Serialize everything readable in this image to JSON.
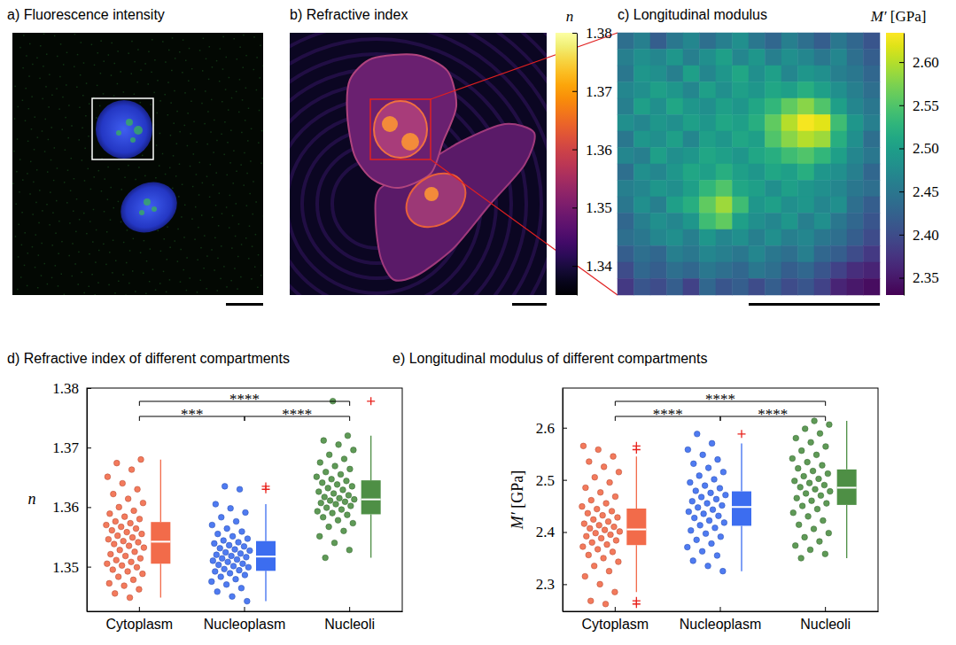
{
  "chart_data": [
    {
      "type": "image",
      "title": "a) Fluorescence intensity"
    },
    {
      "type": "image",
      "title": "b) Refractive index",
      "colorbar": {
        "label": "n",
        "range": [
          1.335,
          1.38
        ],
        "ticks": [
          1.34,
          1.35,
          1.36,
          1.37,
          1.38
        ]
      }
    },
    {
      "type": "heatmap",
      "title": "c) Longitudinal modulus",
      "values": [
        [
          2.44,
          2.46,
          2.42,
          2.45,
          2.47,
          2.44,
          2.46,
          2.48,
          2.45,
          2.43,
          2.46,
          2.44,
          2.42,
          2.45,
          2.43,
          2.41
        ],
        [
          2.46,
          2.48,
          2.47,
          2.49,
          2.46,
          2.48,
          2.5,
          2.47,
          2.49,
          2.46,
          2.48,
          2.47,
          2.45,
          2.47,
          2.44,
          2.42
        ],
        [
          2.45,
          2.49,
          2.48,
          2.46,
          2.5,
          2.47,
          2.49,
          2.51,
          2.48,
          2.5,
          2.47,
          2.49,
          2.48,
          2.46,
          2.45,
          2.43
        ],
        [
          2.47,
          2.48,
          2.5,
          2.49,
          2.47,
          2.5,
          2.48,
          2.5,
          2.49,
          2.51,
          2.5,
          2.52,
          2.5,
          2.48,
          2.46,
          2.44
        ],
        [
          2.46,
          2.5,
          2.48,
          2.51,
          2.49,
          2.48,
          2.5,
          2.49,
          2.51,
          2.53,
          2.56,
          2.58,
          2.55,
          2.5,
          2.47,
          2.45
        ],
        [
          2.48,
          2.47,
          2.49,
          2.48,
          2.5,
          2.49,
          2.51,
          2.5,
          2.52,
          2.56,
          2.6,
          2.63,
          2.62,
          2.54,
          2.49,
          2.46
        ],
        [
          2.45,
          2.49,
          2.48,
          2.5,
          2.47,
          2.5,
          2.49,
          2.51,
          2.5,
          2.55,
          2.58,
          2.6,
          2.59,
          2.52,
          2.48,
          2.44
        ],
        [
          2.47,
          2.46,
          2.5,
          2.48,
          2.49,
          2.51,
          2.5,
          2.49,
          2.51,
          2.52,
          2.54,
          2.55,
          2.53,
          2.5,
          2.47,
          2.45
        ],
        [
          2.44,
          2.48,
          2.47,
          2.49,
          2.51,
          2.5,
          2.52,
          2.5,
          2.49,
          2.51,
          2.5,
          2.52,
          2.49,
          2.48,
          2.46,
          2.43
        ],
        [
          2.46,
          2.47,
          2.49,
          2.48,
          2.5,
          2.53,
          2.55,
          2.51,
          2.5,
          2.48,
          2.5,
          2.49,
          2.48,
          2.47,
          2.45,
          2.44
        ],
        [
          2.45,
          2.48,
          2.46,
          2.5,
          2.52,
          2.56,
          2.59,
          2.54,
          2.49,
          2.5,
          2.48,
          2.49,
          2.47,
          2.48,
          2.44,
          2.42
        ],
        [
          2.43,
          2.46,
          2.48,
          2.47,
          2.49,
          2.54,
          2.56,
          2.5,
          2.48,
          2.47,
          2.49,
          2.46,
          2.48,
          2.45,
          2.43,
          2.41
        ],
        [
          2.44,
          2.45,
          2.47,
          2.48,
          2.46,
          2.49,
          2.47,
          2.48,
          2.46,
          2.48,
          2.46,
          2.47,
          2.45,
          2.44,
          2.42,
          2.4
        ],
        [
          2.42,
          2.44,
          2.43,
          2.46,
          2.45,
          2.47,
          2.46,
          2.45,
          2.47,
          2.45,
          2.44,
          2.46,
          2.43,
          2.42,
          2.4,
          2.38
        ],
        [
          2.4,
          2.43,
          2.42,
          2.44,
          2.43,
          2.45,
          2.44,
          2.43,
          2.45,
          2.44,
          2.42,
          2.43,
          2.41,
          2.39,
          2.37,
          2.36
        ],
        [
          2.38,
          2.41,
          2.4,
          2.42,
          2.39,
          2.43,
          2.41,
          2.42,
          2.4,
          2.42,
          2.4,
          2.41,
          2.39,
          2.36,
          2.35,
          2.34
        ]
      ],
      "colorbar": {
        "label": "M′ [GPa]",
        "range": [
          2.33,
          2.634
        ],
        "ticks": [
          2.35,
          {
            "value": 2.4,
            "label": "2.40"
          },
          2.45,
          {
            "value": 2.5,
            "label": "2.50"
          },
          2.55,
          {
            "value": 2.6,
            "label": "2.60"
          }
        ]
      }
    },
    {
      "type": "box",
      "title": "d) Refractive index of different compartments",
      "categories": [
        "Cytoplasm",
        "Nucleoplasm",
        "Nucleoli"
      ],
      "colors": [
        "#f26b4a",
        "#3c6df0",
        "#4e8f45"
      ],
      "ylabel": "n",
      "ylim": [
        1.3425,
        1.38
      ],
      "yticks": [
        1.35,
        1.36,
        1.37,
        1.38
      ],
      "points": [
        [
          1.3448,
          1.3455,
          1.3462,
          1.3468,
          1.3472,
          1.3478,
          1.3483,
          1.3488,
          1.3492,
          1.3495,
          1.3499,
          1.3502,
          1.3505,
          1.3508,
          1.3511,
          1.3514,
          1.3518,
          1.3521,
          1.3525,
          1.3528,
          1.3532,
          1.3535,
          1.3538,
          1.3541,
          1.3543,
          1.3546,
          1.3549,
          1.3552,
          1.3555,
          1.3558,
          1.3561,
          1.3564,
          1.3567,
          1.357,
          1.3573,
          1.3576,
          1.358,
          1.3584,
          1.3589,
          1.3594,
          1.36,
          1.3607,
          1.3614,
          1.3622,
          1.363,
          1.364,
          1.3651,
          1.3663,
          1.3674,
          1.368
        ],
        [
          1.3442,
          1.345,
          1.3458,
          1.3464,
          1.347,
          1.3475,
          1.3479,
          1.3483,
          1.3486,
          1.3489,
          1.3492,
          1.3494,
          1.3496,
          1.3499,
          1.3501,
          1.3503,
          1.3505,
          1.3508,
          1.351,
          1.3512,
          1.3514,
          1.3516,
          1.3518,
          1.352,
          1.3522,
          1.3524,
          1.3527,
          1.3529,
          1.3531,
          1.3534,
          1.3536,
          1.3539,
          1.3541,
          1.3544,
          1.3547,
          1.3551,
          1.3555,
          1.3559,
          1.3564,
          1.357,
          1.3576,
          1.3583,
          1.3591,
          1.3598,
          1.3605,
          1.363,
          1.3635
        ],
        [
          1.3515,
          1.3528,
          1.354,
          1.3551,
          1.356,
          1.3567,
          1.3573,
          1.3578,
          1.3583,
          1.3587,
          1.359,
          1.3593,
          1.3596,
          1.3599,
          1.3602,
          1.3605,
          1.3607,
          1.3609,
          1.3611,
          1.3613,
          1.3615,
          1.3617,
          1.362,
          1.3623,
          1.3626,
          1.3629,
          1.3632,
          1.3635,
          1.3638,
          1.3641,
          1.3644,
          1.3647,
          1.3651,
          1.3655,
          1.3659,
          1.3664,
          1.3669,
          1.3675,
          1.3681,
          1.3688,
          1.3696,
          1.3705,
          1.3712,
          1.372,
          1.3778
        ]
      ],
      "boxes": [
        {
          "median": 1.3542,
          "q1": 1.3505,
          "q3": 1.3575,
          "whisker_low": 1.3448,
          "whisker_high": 1.368,
          "outliers": []
        },
        {
          "median": 1.3517,
          "q1": 1.3493,
          "q3": 1.3543,
          "whisker_low": 1.3442,
          "whisker_high": 1.3605,
          "outliers": [
            1.363,
            1.3635
          ]
        },
        {
          "median": 1.3613,
          "q1": 1.3588,
          "q3": 1.3645,
          "whisker_low": 1.3515,
          "whisker_high": 1.372,
          "outliers": [
            1.3778
          ]
        }
      ],
      "significance": [
        {
          "pair": [
            0,
            1
          ],
          "label": "***"
        },
        {
          "pair": [
            0,
            2
          ],
          "label": "****"
        },
        {
          "pair": [
            1,
            2
          ],
          "label": "****"
        }
      ]
    },
    {
      "type": "box",
      "title": "e) Longitudinal modulus of different compartments",
      "categories": [
        "Cytoplasm",
        "Nucleoplasm",
        "Nucleoli"
      ],
      "colors": [
        "#f26b4a",
        "#3c6df0",
        "#4e8f45"
      ],
      "ylabel": "M′ [GPa]",
      "ylim": [
        2.248,
        2.676
      ],
      "yticks": [
        2.3,
        2.4,
        2.5,
        2.6
      ],
      "points": [
        [
          2.262,
          2.268,
          2.285,
          2.3,
          2.315,
          2.325,
          2.335,
          2.343,
          2.35,
          2.356,
          2.362,
          2.367,
          2.372,
          2.376,
          2.38,
          2.384,
          2.388,
          2.392,
          2.395,
          2.398,
          2.401,
          2.404,
          2.407,
          2.41,
          2.413,
          2.416,
          2.42,
          2.424,
          2.428,
          2.432,
          2.436,
          2.44,
          2.444,
          2.449,
          2.455,
          2.461,
          2.468,
          2.476,
          2.485,
          2.495,
          2.505,
          2.515,
          2.525,
          2.535,
          2.545,
          2.558,
          2.565
        ],
        [
          2.325,
          2.335,
          2.345,
          2.355,
          2.363,
          2.371,
          2.378,
          2.385,
          2.391,
          2.397,
          2.403,
          2.408,
          2.413,
          2.418,
          2.422,
          2.427,
          2.431,
          2.435,
          2.439,
          2.443,
          2.447,
          2.451,
          2.455,
          2.459,
          2.463,
          2.467,
          2.471,
          2.475,
          2.479,
          2.484,
          2.489,
          2.495,
          2.501,
          2.508,
          2.515,
          2.523,
          2.531,
          2.539,
          2.548,
          2.558,
          2.57,
          2.588
        ],
        [
          2.35,
          2.358,
          2.366,
          2.374,
          2.382,
          2.39,
          2.398,
          2.406,
          2.414,
          2.422,
          2.43,
          2.437,
          2.444,
          2.45,
          2.455,
          2.46,
          2.465,
          2.47,
          2.474,
          2.478,
          2.482,
          2.486,
          2.49,
          2.494,
          2.498,
          2.502,
          2.507,
          2.512,
          2.517,
          2.522,
          2.528,
          2.534,
          2.541,
          2.548,
          2.556,
          2.564,
          2.572,
          2.58,
          2.589,
          2.598,
          2.606,
          2.613
        ]
      ],
      "boxes": [
        {
          "median": 2.405,
          "q1": 2.375,
          "q3": 2.445,
          "whisker_low": 2.285,
          "whisker_high": 2.545,
          "outliers": [
            2.262,
            2.268,
            2.558,
            2.565
          ]
        },
        {
          "median": 2.448,
          "q1": 2.412,
          "q3": 2.478,
          "whisker_low": 2.325,
          "whisker_high": 2.57,
          "outliers": [
            2.588
          ]
        },
        {
          "median": 2.485,
          "q1": 2.452,
          "q3": 2.52,
          "whisker_low": 2.35,
          "whisker_high": 2.613,
          "outliers": []
        }
      ],
      "significance": [
        {
          "pair": [
            0,
            1
          ],
          "label": "****"
        },
        {
          "pair": [
            0,
            2
          ],
          "label": "****"
        },
        {
          "pair": [
            1,
            2
          ],
          "label": "****"
        }
      ]
    }
  ]
}
